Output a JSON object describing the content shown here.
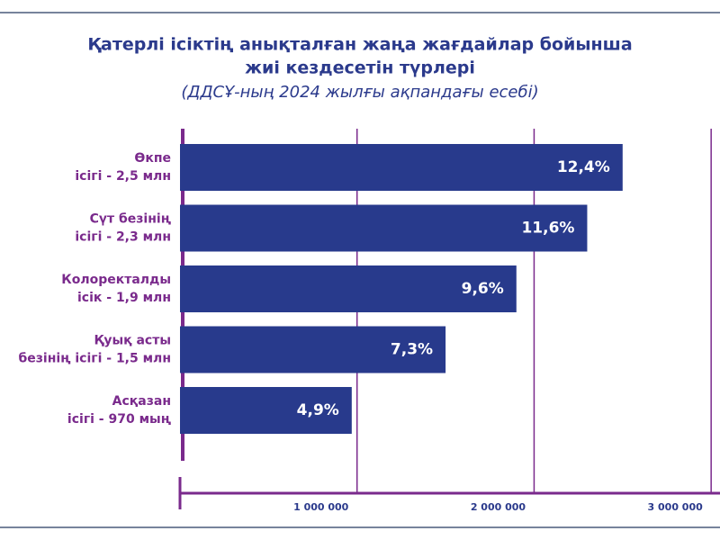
{
  "chart_data": {
    "type": "bar",
    "orientation": "horizontal",
    "title": [
      "Қатерлі ісіктің анықталған жаңа жағдайлар бойынша",
      "жиі кездесетін түрлері"
    ],
    "subtitle": "(ДДСҰ-ның 2024 жылғы ақпандағы есебі)",
    "categories": [
      [
        "Өкпе",
        "ісігі - 2,5 млн"
      ],
      [
        "Сүт безінің",
        "ісігі - 2,3 млн"
      ],
      [
        "Колоректалды",
        "ісік - 1,9 млн"
      ],
      [
        "Қуық асты",
        "безінің ісігі - 1,5 млн"
      ],
      [
        "Асқазан",
        "ісігі - 970 мың"
      ]
    ],
    "values": [
      2500000,
      2300000,
      1900000,
      1500000,
      970000
    ],
    "percent": [
      12.4,
      11.6,
      9.6,
      7.3,
      4.9
    ],
    "percent_labels": [
      "12,4%",
      "11,6%",
      "9,6%",
      "7,3%",
      "4,9%"
    ],
    "color": "#283a8c",
    "xlim": [
      0,
      3050000
    ],
    "xticks": [
      {
        "value": 1000000,
        "label": "1 000 000"
      },
      {
        "value": 2000000,
        "label": "2 000 000"
      },
      {
        "value": 3000000,
        "label": "3 000 000"
      }
    ],
    "grid": true
  }
}
